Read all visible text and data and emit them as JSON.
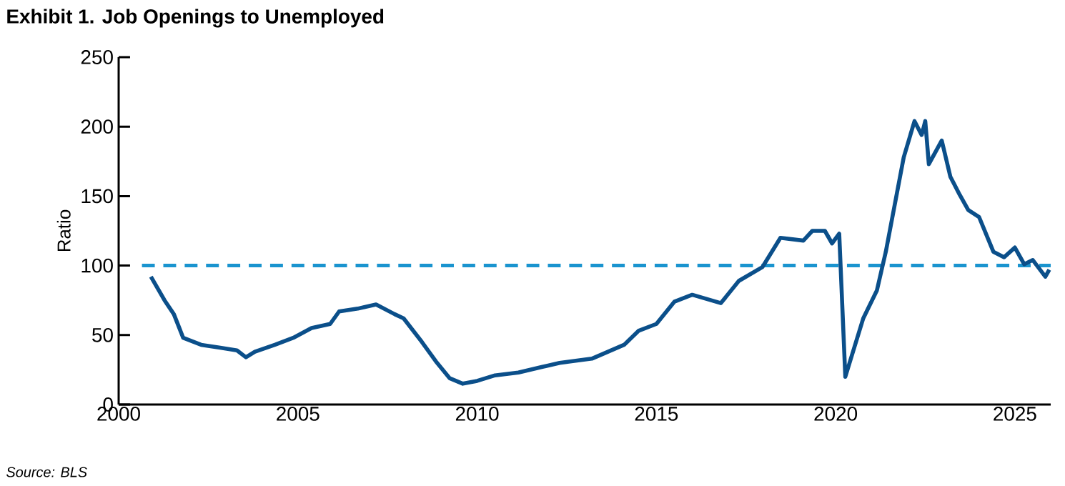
{
  "chart_data": {
    "type": "line",
    "title": "Exhibit 1. Job Openings to Unemployed",
    "ylabel": "Ratio",
    "annotations": [
      "Source: BLS"
    ],
    "x": [
      2000.9,
      2001.28,
      2001.54,
      2001.8,
      2002.3,
      2002.8,
      2003.3,
      2003.55,
      2003.8,
      2004.36,
      2004.87,
      2005.38,
      2005.9,
      2006.15,
      2006.67,
      2007.18,
      2007.7,
      2007.95,
      2008.46,
      2008.85,
      2009.23,
      2009.6,
      2010.0,
      2010.5,
      2011.15,
      2011.8,
      2012.3,
      2013.2,
      2014.1,
      2014.5,
      2015.0,
      2015.5,
      2016.0,
      2016.8,
      2017.3,
      2017.96,
      2018.46,
      2019.1,
      2019.35,
      2019.7,
      2019.9,
      2020.1,
      2020.27,
      2020.77,
      2021.15,
      2021.4,
      2021.9,
      2022.2,
      2022.4,
      2022.5,
      2022.6,
      2022.96,
      2023.2,
      2023.46,
      2023.7,
      2024.0,
      2024.4,
      2024.7,
      2025.0,
      2025.26,
      2025.5,
      2025.85,
      2025.96
    ],
    "series": [
      {
        "color": "#0b4f8a",
        "values": [
          92,
          75,
          65,
          48,
          43,
          41,
          39,
          34,
          38,
          43,
          48,
          55,
          58,
          67,
          69,
          72,
          65,
          62,
          45,
          31,
          19,
          15,
          17,
          21,
          23,
          27,
          30,
          33,
          43,
          53,
          58,
          74,
          79,
          73,
          89,
          99,
          120,
          118,
          125,
          125,
          116,
          123,
          20,
          62,
          82,
          110,
          178,
          204,
          194,
          204,
          173,
          190,
          164,
          151,
          140,
          135,
          110,
          106,
          113,
          101,
          104,
          92,
          97
        ]
      }
    ],
    "xlim": [
      2000,
      2026
    ],
    "ylim": [
      0,
      250
    ],
    "xticks": [
      2000,
      2005,
      2010,
      2015,
      2020,
      2025
    ],
    "yticks": [
      0,
      50,
      100,
      150,
      200,
      250
    ],
    "ref_lines": [
      {
        "axis": "y",
        "value": 100,
        "color": "#1a94cf",
        "line_style": "dashed"
      }
    ],
    "marker": "none",
    "line_style": "solid"
  }
}
